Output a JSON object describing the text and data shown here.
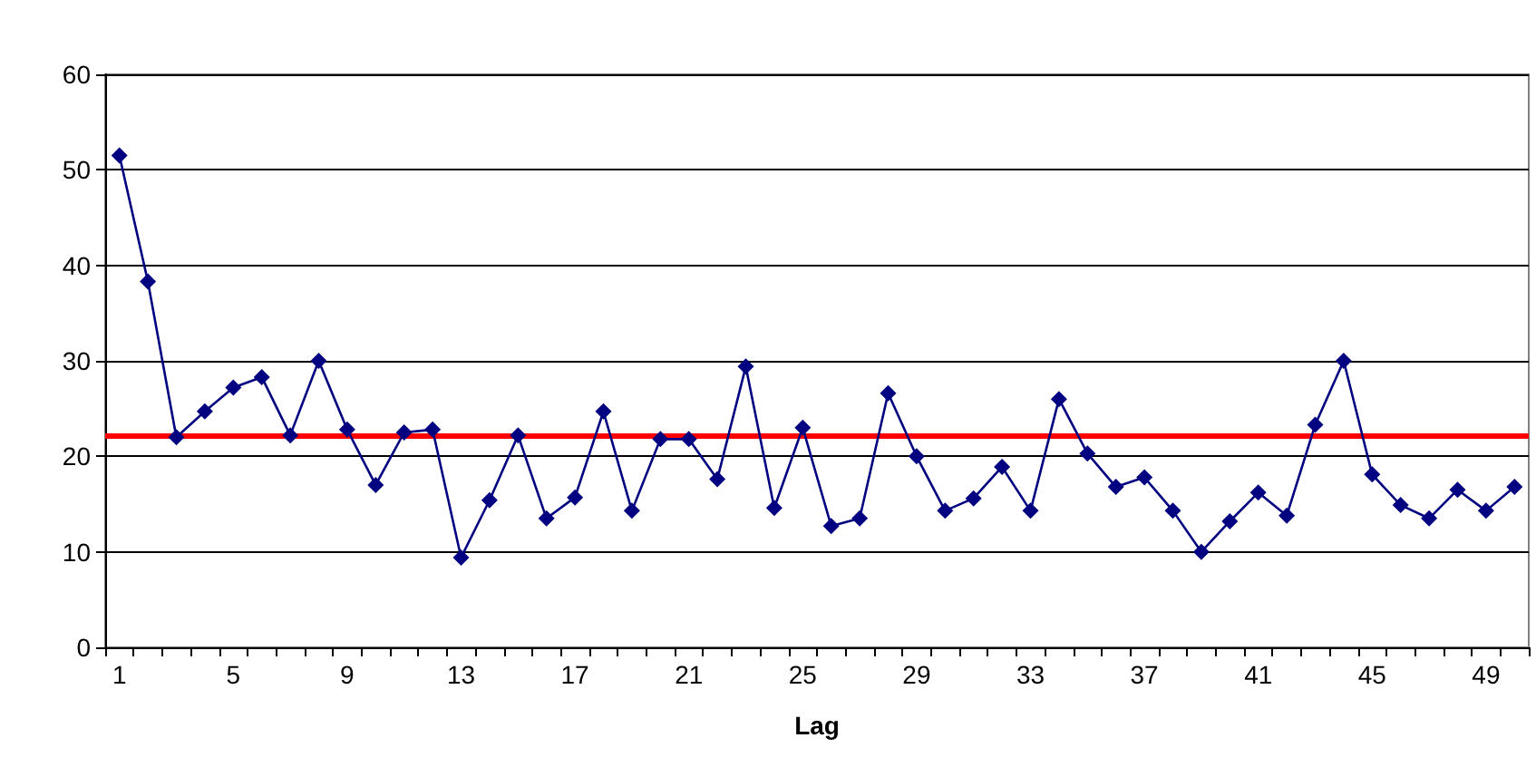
{
  "chart_data": {
    "type": "line",
    "xlabel": "Lag",
    "categories": [
      "1",
      null,
      null,
      null,
      "5",
      null,
      null,
      null,
      "9",
      null,
      null,
      null,
      "13",
      null,
      null,
      null,
      "17",
      null,
      null,
      null,
      "21",
      null,
      null,
      null,
      "25",
      null,
      null,
      null,
      "29",
      null,
      null,
      null,
      "33",
      null,
      null,
      null,
      "37",
      null,
      null,
      null,
      "41",
      null,
      null,
      null,
      "45",
      null,
      null,
      null,
      "49",
      null
    ],
    "series": [
      {
        "color": "#000080",
        "values": [
          51.5,
          38.3,
          22,
          24.7,
          27.2,
          28.3,
          22.2,
          30,
          22.8,
          17,
          22.5,
          22.8,
          9.4,
          15.4,
          22.2,
          13.5,
          15.7,
          24.7,
          14.3,
          21.8,
          21.8,
          17.6,
          29.4,
          14.6,
          23,
          12.7,
          13.5,
          26.6,
          20,
          14.3,
          15.6,
          18.9,
          14.3,
          26,
          20.3,
          16.8,
          17.8,
          14.3,
          10,
          13.2,
          16.2,
          13.8,
          23.3,
          30,
          18.1,
          14.9,
          13.5,
          16.5,
          14.3,
          16.8
        ]
      }
    ],
    "ylim": [
      0,
      60
    ],
    "yticks": [
      0,
      10,
      20,
      30,
      40,
      50,
      60
    ],
    "ref_lines": [
      {
        "axis": "y",
        "value": 22.2,
        "color": "#ff0000",
        "line_style": "solid"
      }
    ],
    "grid": "y",
    "marker": "diamond",
    "line_style": "solid"
  }
}
